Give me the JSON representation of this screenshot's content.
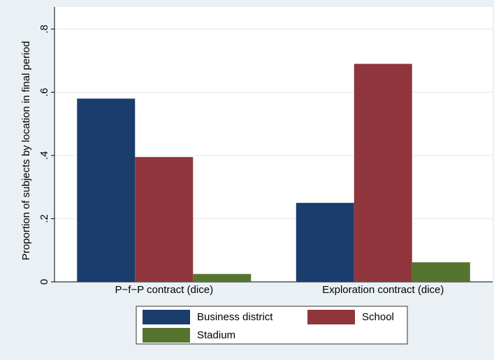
{
  "chart_data": {
    "type": "bar",
    "y_label": "Proportion of subjects by location in final period",
    "categories": [
      "P−f−P contract (dice)",
      "Exploration contract (dice)"
    ],
    "series": [
      {
        "name": "Business district",
        "color": "#1a3d6e",
        "values": [
          0.58,
          0.25
        ]
      },
      {
        "name": "School",
        "color": "#90353b",
        "values": [
          0.395,
          0.69
        ]
      },
      {
        "name": "Stadium",
        "color": "#55752f",
        "values": [
          0.025,
          0.062
        ]
      }
    ],
    "ylim": [
      0,
      0.87
    ],
    "yticks": [
      0,
      {
        "value": 0.2,
        "label": ".2"
      },
      {
        "value": 0.4,
        "label": ".4"
      },
      {
        "value": 0.6,
        "label": ".6"
      },
      {
        "value": 0.8,
        "label": ".8"
      }
    ],
    "grid": true
  }
}
